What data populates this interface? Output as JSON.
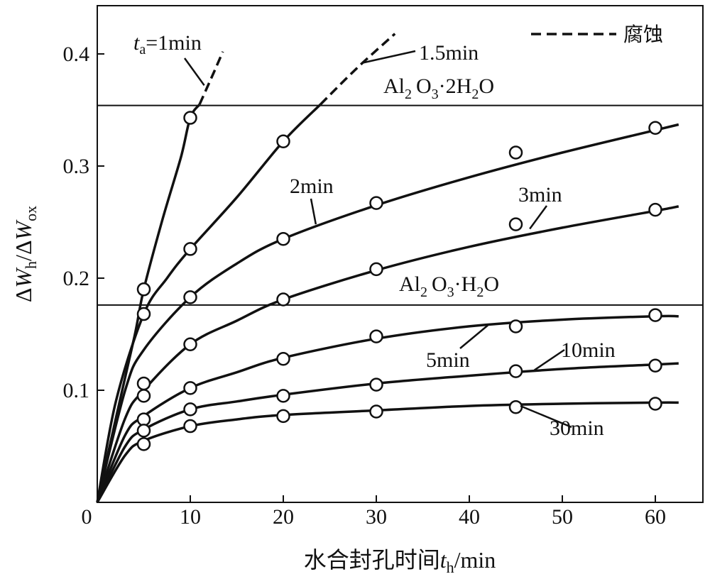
{
  "chart_data": {
    "type": "line",
    "xlabel": {
      "prefix": "水合封孔时间",
      "var": "t",
      "sub": "h",
      "suffix": "/min"
    },
    "ylabel": {
      "d1": "Δ",
      "v1": "W",
      "s1": "h",
      "sep": "/",
      "d2": "Δ",
      "v2": "W",
      "s2": "ox"
    },
    "xlim": [
      0,
      65
    ],
    "ylim": [
      0,
      0.44
    ],
    "origin_label": "0",
    "x_ticks": [
      10,
      20,
      30,
      40,
      50,
      60
    ],
    "x_tick_labels": [
      "10",
      "20",
      "30",
      "40",
      "50",
      "60"
    ],
    "y_ticks": [
      0.1,
      0.2,
      0.3,
      0.4
    ],
    "y_tick_labels": [
      "0.1",
      "0.2",
      "0.3",
      "0.4"
    ],
    "legend": {
      "label": "腐蚀",
      "style": "dashed",
      "position": "top-right"
    },
    "reference_lines": [
      {
        "y": 0.354,
        "label": {
          "p1": "Al",
          "s1": "2",
          "p2": "O",
          "s2": "3",
          "p3": "·2H",
          "s3": "2",
          "p4": "O"
        }
      },
      {
        "y": 0.176,
        "label": {
          "p1": "Al",
          "s1": "2",
          "p2": "O",
          "s2": "3",
          "p3": "·H",
          "s3": "2",
          "p4": "O"
        }
      }
    ],
    "series": [
      {
        "name": "1min",
        "label_prefix": {
          "var": "t",
          "sub": "a",
          "eq": "=1min"
        },
        "points": [
          [
            5,
            0.19
          ],
          [
            10,
            0.343
          ]
        ],
        "curve": [
          [
            0,
            0
          ],
          [
            2,
            0.075
          ],
          [
            4,
            0.148
          ],
          [
            5,
            0.19
          ],
          [
            7,
            0.252
          ],
          [
            9,
            0.308
          ],
          [
            10,
            0.343
          ],
          [
            11,
            0.355
          ]
        ],
        "dashed": [
          [
            11,
            0.355
          ],
          [
            12.5,
            0.383
          ],
          [
            13.5,
            0.402
          ]
        ]
      },
      {
        "name": "1.5min",
        "label": "1.5min",
        "points": [
          [
            5,
            0.168
          ],
          [
            10,
            0.226
          ],
          [
            20,
            0.322
          ]
        ],
        "curve": [
          [
            0,
            0
          ],
          [
            2,
            0.09
          ],
          [
            5,
            0.168
          ],
          [
            7.5,
            0.2
          ],
          [
            10,
            0.226
          ],
          [
            15,
            0.272
          ],
          [
            20,
            0.322
          ],
          [
            24,
            0.355
          ]
        ],
        "dashed": [
          [
            24,
            0.355
          ],
          [
            28,
            0.388
          ],
          [
            32,
            0.418
          ]
        ]
      },
      {
        "name": "2min",
        "label": "2min",
        "points": [
          [
            5,
            0.106
          ],
          [
            10,
            0.183
          ],
          [
            20,
            0.235
          ],
          [
            30,
            0.267
          ],
          [
            45,
            0.312
          ],
          [
            60,
            0.334
          ]
        ],
        "curve": [
          [
            0,
            0
          ],
          [
            3,
            0.1
          ],
          [
            5,
            0.136
          ],
          [
            10,
            0.183
          ],
          [
            15,
            0.213
          ],
          [
            20,
            0.235
          ],
          [
            30,
            0.265
          ],
          [
            40,
            0.29
          ],
          [
            50,
            0.312
          ],
          [
            60,
            0.332
          ],
          [
            62.5,
            0.337
          ]
        ]
      },
      {
        "name": "3min",
        "label": "3min",
        "points": [
          [
            5,
            0.095
          ],
          [
            10,
            0.141
          ],
          [
            20,
            0.181
          ],
          [
            30,
            0.208
          ],
          [
            45,
            0.248
          ],
          [
            60,
            0.261
          ]
        ],
        "curve": [
          [
            0,
            0
          ],
          [
            3,
            0.075
          ],
          [
            5,
            0.1
          ],
          [
            10,
            0.141
          ],
          [
            15,
            0.162
          ],
          [
            20,
            0.181
          ],
          [
            30,
            0.207
          ],
          [
            40,
            0.228
          ],
          [
            50,
            0.245
          ],
          [
            60,
            0.26
          ],
          [
            62.5,
            0.264
          ]
        ]
      },
      {
        "name": "5min",
        "label": "5min",
        "points": [
          [
            5,
            0.074
          ],
          [
            10,
            0.102
          ],
          [
            20,
            0.128
          ],
          [
            30,
            0.148
          ],
          [
            45,
            0.157
          ],
          [
            60,
            0.167
          ]
        ],
        "curve": [
          [
            0,
            0
          ],
          [
            3,
            0.06
          ],
          [
            5,
            0.077
          ],
          [
            10,
            0.102
          ],
          [
            15,
            0.116
          ],
          [
            20,
            0.129
          ],
          [
            30,
            0.146
          ],
          [
            40,
            0.157
          ],
          [
            50,
            0.163
          ],
          [
            60,
            0.166
          ],
          [
            62.5,
            0.166
          ]
        ]
      },
      {
        "name": "10min",
        "label": "10min",
        "points": [
          [
            5,
            0.064
          ],
          [
            10,
            0.083
          ],
          [
            20,
            0.095
          ],
          [
            30,
            0.105
          ],
          [
            45,
            0.117
          ],
          [
            60,
            0.122
          ]
        ],
        "curve": [
          [
            0,
            0
          ],
          [
            3,
            0.05
          ],
          [
            5,
            0.065
          ],
          [
            10,
            0.083
          ],
          [
            15,
            0.09
          ],
          [
            20,
            0.096
          ],
          [
            30,
            0.106
          ],
          [
            40,
            0.113
          ],
          [
            50,
            0.119
          ],
          [
            60,
            0.123
          ],
          [
            62.5,
            0.124
          ]
        ]
      },
      {
        "name": "30min",
        "label": "30min",
        "points": [
          [
            5,
            0.052
          ],
          [
            10,
            0.068
          ],
          [
            20,
            0.077
          ],
          [
            30,
            0.081
          ],
          [
            45,
            0.085
          ],
          [
            60,
            0.088
          ]
        ],
        "curve": [
          [
            0,
            0
          ],
          [
            3,
            0.042
          ],
          [
            5,
            0.055
          ],
          [
            10,
            0.068
          ],
          [
            15,
            0.074
          ],
          [
            20,
            0.078
          ],
          [
            30,
            0.082
          ],
          [
            40,
            0.086
          ],
          [
            50,
            0.088
          ],
          [
            60,
            0.089
          ],
          [
            62.5,
            0.089
          ]
        ]
      }
    ]
  }
}
